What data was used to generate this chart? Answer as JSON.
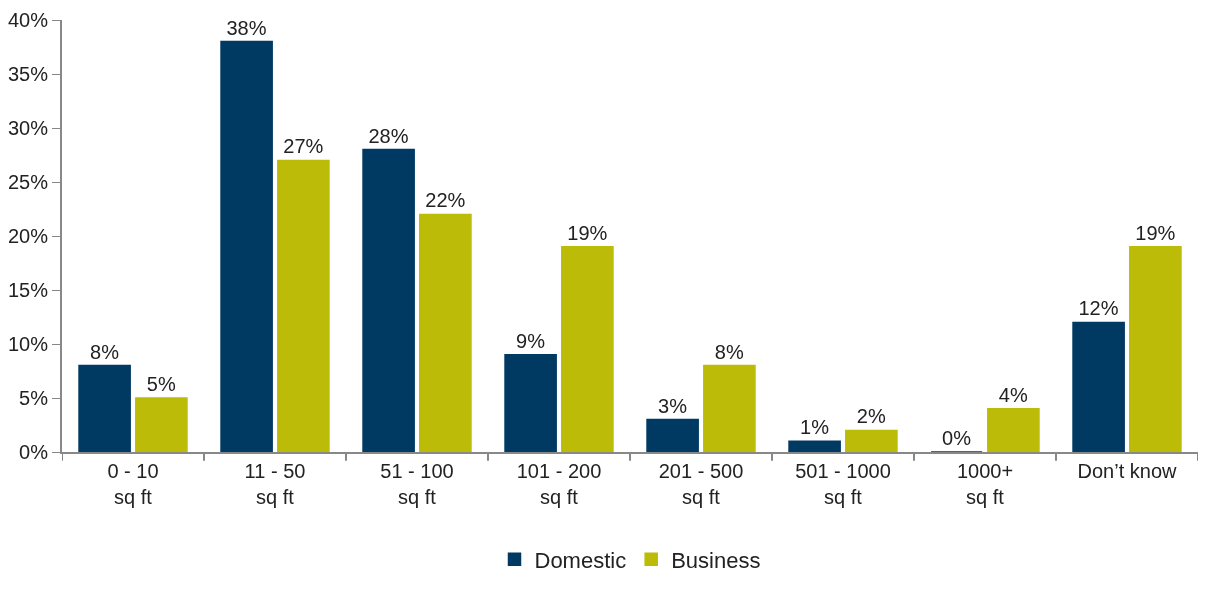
{
  "chart_data": {
    "type": "bar",
    "categories": [
      "0 - 10\nsq ft",
      "11 - 50\nsq ft",
      "51 - 100\nsq ft",
      "101 - 200\nsq ft",
      "201 - 500\nsq ft",
      "501 - 1000\nsq ft",
      "1000+\nsq ft",
      "Don’t know"
    ],
    "series": [
      {
        "name": "Domestic",
        "color": "#003a63",
        "values": [
          8,
          38,
          28,
          9,
          3,
          1,
          0,
          12
        ],
        "value_labels": [
          "8%",
          "38%",
          "28%",
          "9%",
          "3%",
          "1%",
          "0%",
          "12%"
        ]
      },
      {
        "name": "Business",
        "color": "#bbbb08",
        "values": [
          5,
          27,
          22,
          19,
          8,
          2,
          4,
          19
        ],
        "value_labels": [
          "5%",
          "27%",
          "22%",
          "19%",
          "8%",
          "2%",
          "4%",
          "19%"
        ]
      }
    ],
    "ylim": [
      0,
      40
    ],
    "yticks": [
      {
        "value": 0,
        "label": "0%"
      },
      {
        "value": 5,
        "label": "5%"
      },
      {
        "value": 10,
        "label": "10%"
      },
      {
        "value": 15,
        "label": "15%"
      },
      {
        "value": 20,
        "label": "20%"
      },
      {
        "value": 25,
        "label": "25%"
      },
      {
        "value": 30,
        "label": "30%"
      },
      {
        "value": 35,
        "label": "35%"
      },
      {
        "value": 40,
        "label": "40%"
      }
    ],
    "grid": false,
    "legend": "bottom"
  }
}
